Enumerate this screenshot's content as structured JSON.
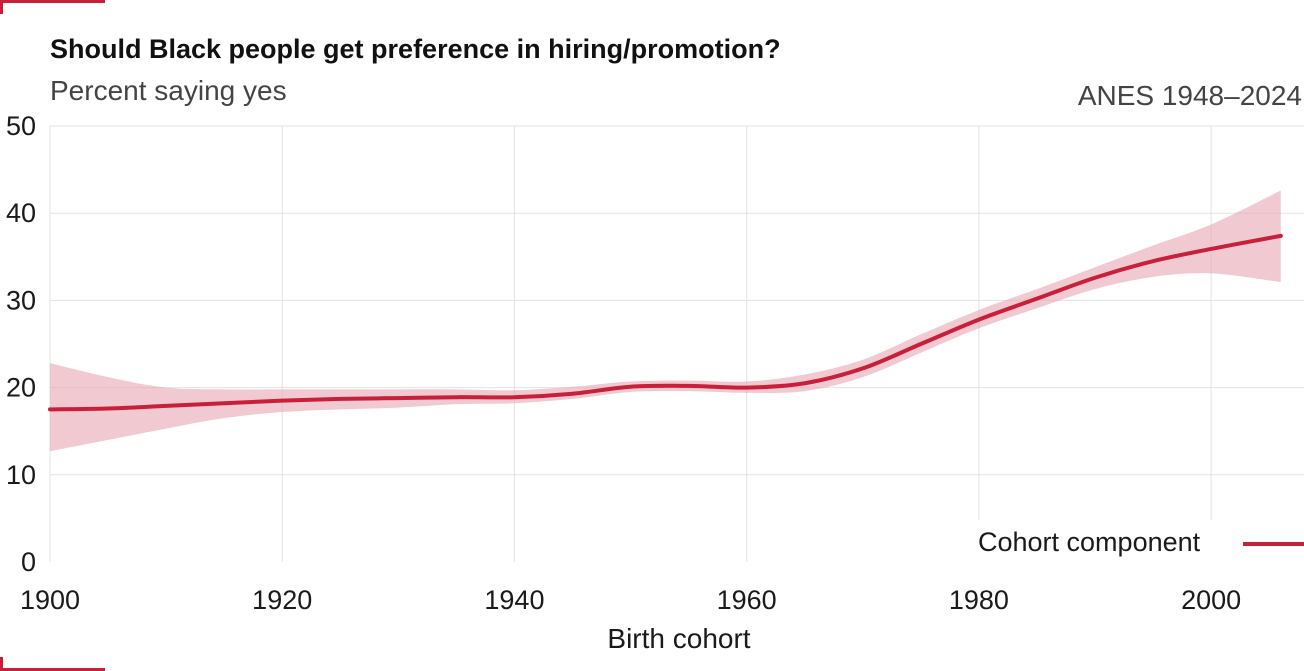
{
  "header": {
    "title": "Should Black people get preference in hiring/promotion?",
    "subtitle": "Percent saying yes",
    "source": "ANES 1948–2024"
  },
  "colors": {
    "accent": "#c8203a",
    "band": "#e8a8b3"
  },
  "legend": {
    "label": "Cohort component",
    "position": "bottom-right"
  },
  "chart_data": {
    "type": "line",
    "title": "Should Black people get preference in hiring/promotion?",
    "subtitle": "Percent saying yes",
    "xlabel": "Birth cohort",
    "ylabel": "",
    "xlim": [
      1900,
      2006
    ],
    "ylim": [
      0,
      50
    ],
    "xticks": [
      1900,
      1920,
      1940,
      1960,
      1980,
      2000
    ],
    "yticks": [
      0,
      10,
      20,
      30,
      40,
      50
    ],
    "grid": true,
    "series": [
      {
        "name": "Cohort component",
        "x": [
          1900,
          1905,
          1910,
          1915,
          1920,
          1925,
          1930,
          1935,
          1940,
          1945,
          1950,
          1955,
          1960,
          1965,
          1970,
          1975,
          1980,
          1985,
          1990,
          1995,
          2000,
          2006
        ],
        "y": [
          17.5,
          17.6,
          17.9,
          18.2,
          18.5,
          18.7,
          18.8,
          18.9,
          18.9,
          19.3,
          20.1,
          20.2,
          20.0,
          20.5,
          22.2,
          25.0,
          27.8,
          30.2,
          32.6,
          34.5,
          35.9,
          37.4
        ],
        "lower": [
          12.7,
          14.0,
          15.3,
          16.5,
          17.2,
          17.5,
          17.7,
          18.1,
          18.2,
          18.7,
          19.5,
          19.6,
          19.4,
          19.6,
          21.2,
          24.0,
          26.8,
          29.1,
          31.3,
          32.7,
          33.1,
          32.1
        ],
        "upper": [
          22.8,
          21.2,
          20.0,
          19.8,
          19.8,
          19.8,
          19.8,
          19.8,
          19.7,
          20.1,
          20.7,
          20.8,
          20.7,
          21.5,
          23.2,
          26.1,
          28.9,
          31.3,
          33.8,
          36.3,
          38.7,
          42.6
        ]
      }
    ]
  }
}
